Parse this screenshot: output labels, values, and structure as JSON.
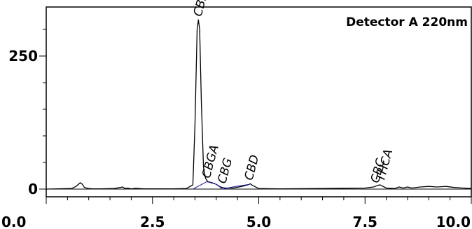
{
  "chart_data": {
    "type": "line",
    "title": "",
    "annotation": "Detector A 220nm",
    "xlabel": "",
    "ylabel": "",
    "xlim": [
      0.0,
      10.0
    ],
    "ylim": [
      -10,
      320
    ],
    "x_ticks": [
      {
        "value": 0.0,
        "label": "0.0"
      },
      {
        "value": 2.5,
        "label": "2.5"
      },
      {
        "value": 5.0,
        "label": "5.0"
      },
      {
        "value": 7.5,
        "label": "7.5"
      },
      {
        "value": 10.0,
        "label": "10.0"
      }
    ],
    "y_ticks": [
      {
        "value": 0,
        "label": "0"
      },
      {
        "value": 250,
        "label": "250"
      }
    ],
    "series": [
      {
        "color": "#000000",
        "x": [
          0.0,
          0.6,
          0.7,
          0.8,
          0.85,
          0.9,
          1.0,
          1.1,
          1.3,
          1.6,
          1.8,
          1.85,
          1.9,
          2.0,
          2.1,
          2.3,
          2.5,
          3.0,
          3.3,
          3.45,
          3.5,
          3.55,
          3.58,
          3.61,
          3.65,
          3.7,
          3.75,
          3.8,
          3.9,
          4.0,
          4.1,
          4.2,
          4.4,
          4.6,
          4.75,
          4.8,
          4.85,
          5.0,
          5.5,
          6.5,
          7.5,
          7.7,
          7.8,
          7.85,
          7.9,
          8.0,
          8.2,
          8.3,
          8.4,
          8.5,
          8.6,
          8.8,
          9.0,
          9.2,
          9.4,
          9.6,
          9.8,
          10.0
        ],
        "y": [
          0,
          1,
          5,
          12,
          9,
          3,
          1,
          0.5,
          0.5,
          1,
          4,
          1,
          2,
          0.5,
          1.5,
          0.5,
          0.5,
          0.5,
          1,
          8,
          120,
          300,
          318,
          300,
          160,
          40,
          20,
          14,
          12,
          9,
          4,
          2,
          2,
          5,
          8,
          10,
          7,
          1,
          0.5,
          1,
          2,
          4,
          7,
          8,
          6,
          2,
          1,
          4,
          2,
          4,
          2,
          4,
          5,
          4,
          5,
          3,
          2,
          1
        ]
      },
      {
        "color": "#1a1aaa",
        "x": [
          3.45,
          3.78,
          4.0,
          4.15,
          4.45,
          4.78
        ],
        "y": [
          0,
          14,
          9,
          0,
          5,
          9
        ]
      }
    ],
    "peaks": [
      {
        "label": "CBDA",
        "x": 3.58,
        "y": 318
      },
      {
        "label": "CBGA",
        "x": 3.78,
        "y": 14
      },
      {
        "label": "CBG",
        "x": 4.15,
        "y": 4
      },
      {
        "label": "CBD",
        "x": 4.78,
        "y": 10
      },
      {
        "label": "CBC",
        "x": 7.75,
        "y": 5
      },
      {
        "label": "THCA",
        "x": 7.88,
        "y": 8
      }
    ],
    "grid": false,
    "legend": "none"
  }
}
